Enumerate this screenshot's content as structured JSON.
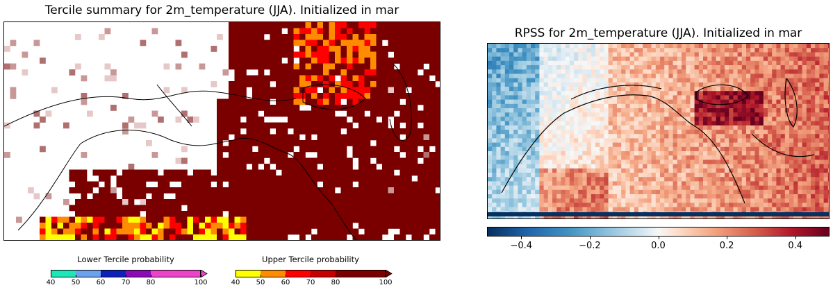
{
  "left_panel": {
    "title": "Tercile summary for 2m_temperature (JJA). Initialized in mar"
  },
  "right_panel": {
    "title": "RPSS for 2m_temperature (JJA). Initialized in mar"
  },
  "lower_colorbar": {
    "title": "Lower Tercile probability",
    "ticks": [
      "40",
      "50",
      "60",
      "70",
      "80",
      "100"
    ],
    "colors": [
      "#1de6b8",
      "#6aa2ee",
      "#0c22b8",
      "#8a0bb6",
      "#ec44c8"
    ]
  },
  "upper_colorbar": {
    "title": "Upper Tercile probability",
    "ticks": [
      "40",
      "50",
      "60",
      "70",
      "80",
      "100"
    ],
    "colors": [
      "#ffff00",
      "#ff8c00",
      "#ff0000",
      "#c40000",
      "#7a0000"
    ]
  },
  "rpss_colorbar": {
    "ticks": [
      "−0.4",
      "−0.2",
      "0.0",
      "0.2",
      "0.4"
    ],
    "range": [
      -0.5,
      0.5
    ]
  }
}
